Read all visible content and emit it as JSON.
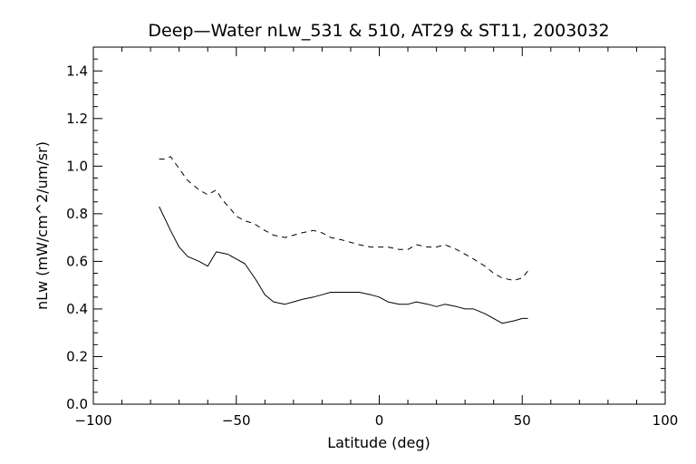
{
  "chart_data": {
    "type": "line",
    "title": "Deep—Water nLw_531 & 510, AT29 & ST11, 2003032",
    "xlabel": "Latitude (deg)",
    "ylabel": "nLw (mW/cm^2/um/sr)",
    "xlim": [
      -100,
      100
    ],
    "ylim": [
      0.0,
      1.5
    ],
    "x_ticks": [
      -100,
      -50,
      0,
      50,
      100
    ],
    "y_ticks": [
      0.0,
      0.2,
      0.4,
      0.6,
      0.8,
      1.0,
      1.2,
      1.4
    ],
    "x_tick_labels": [
      "−100",
      "−50",
      "0",
      "50",
      "100"
    ],
    "y_tick_labels": [
      "0.0",
      "0.2",
      "0.4",
      "0.6",
      "0.8",
      "1.0",
      "1.2",
      "1.4"
    ],
    "grid": false,
    "series": [
      {
        "style": "dashed",
        "color": "#000000",
        "x": [
          -77,
          -75,
          -73,
          -70,
          -67,
          -63,
          -60,
          -57,
          -55,
          -52,
          -50,
          -47,
          -44,
          -40,
          -37,
          -33,
          -30,
          -27,
          -23,
          -20,
          -17,
          -13,
          -10,
          -7,
          -3,
          0,
          3,
          7,
          10,
          13,
          17,
          20,
          23,
          27,
          30,
          33,
          37,
          40,
          43,
          47,
          50,
          52
        ],
        "y": [
          1.03,
          1.03,
          1.04,
          0.99,
          0.94,
          0.9,
          0.88,
          0.9,
          0.86,
          0.82,
          0.79,
          0.77,
          0.76,
          0.73,
          0.71,
          0.7,
          0.71,
          0.72,
          0.73,
          0.72,
          0.7,
          0.69,
          0.68,
          0.67,
          0.66,
          0.66,
          0.66,
          0.65,
          0.65,
          0.67,
          0.66,
          0.66,
          0.67,
          0.65,
          0.63,
          0.61,
          0.58,
          0.55,
          0.53,
          0.52,
          0.53,
          0.56
        ]
      },
      {
        "style": "solid",
        "color": "#000000",
        "x": [
          -77,
          -73,
          -70,
          -67,
          -63,
          -60,
          -57,
          -53,
          -50,
          -47,
          -43,
          -40,
          -37,
          -33,
          -30,
          -27,
          -23,
          -20,
          -17,
          -13,
          -10,
          -7,
          -3,
          0,
          3,
          7,
          10,
          13,
          17,
          20,
          23,
          27,
          30,
          33,
          37,
          40,
          43,
          47,
          50,
          52
        ],
        "y": [
          0.83,
          0.73,
          0.66,
          0.62,
          0.6,
          0.58,
          0.64,
          0.63,
          0.61,
          0.59,
          0.52,
          0.46,
          0.43,
          0.42,
          0.43,
          0.44,
          0.45,
          0.46,
          0.47,
          0.47,
          0.47,
          0.47,
          0.46,
          0.45,
          0.43,
          0.42,
          0.42,
          0.43,
          0.42,
          0.41,
          0.42,
          0.41,
          0.4,
          0.4,
          0.38,
          0.36,
          0.34,
          0.35,
          0.36,
          0.36
        ]
      }
    ]
  }
}
